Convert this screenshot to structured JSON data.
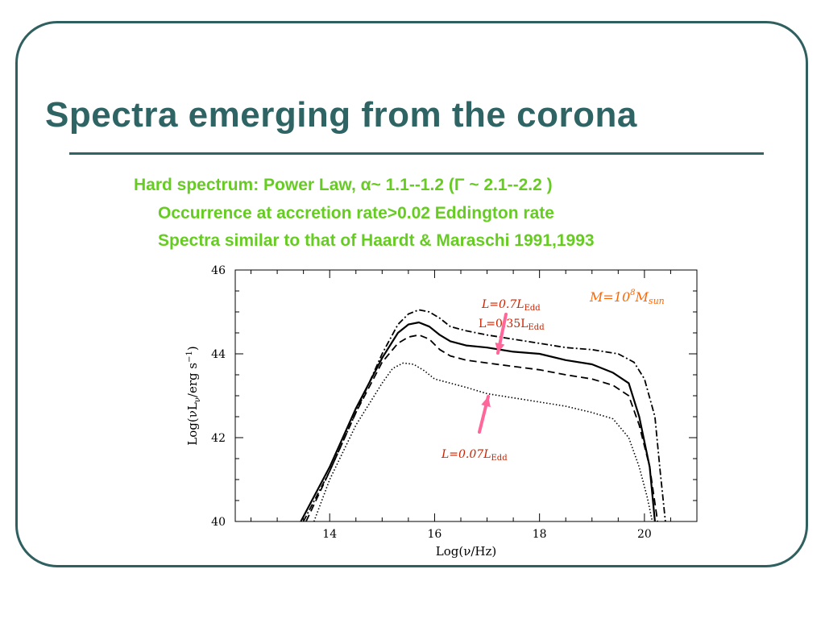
{
  "slide": {
    "title": "Spectra emerging from the corona",
    "bullets": [
      "Hard spectrum: Power Law, α~ 1.1--1.2 (Γ ~ 2.1--2.2 )",
      "Occurrence at accretion rate>0.02 Eddington rate",
      "Spectra similar to that of Haardt & Maraschi 1991,1993"
    ]
  },
  "colors": {
    "frame": "#2f5f5f",
    "title": "#2f6464",
    "bullets": "#66cc22",
    "annotations": "#cc2200",
    "mass_label": "#ff6600",
    "arrows": "#ff6699"
  },
  "chart_data": {
    "type": "line",
    "xlabel": "Log(ν/Hz)",
    "ylabel": "Log(νL",
    "ylabel_sub": "ν",
    "ylabel_tail": "/erg s",
    "ylabel_sup": "−1",
    "ylabel_close": ")",
    "xlim": [
      12.2,
      21.0
    ],
    "ylim": [
      40,
      46
    ],
    "xticks": [
      14,
      16,
      18,
      20
    ],
    "yticks": [
      40,
      42,
      44,
      46
    ],
    "xtick_labels": [
      "14",
      "16",
      "18",
      "20"
    ],
    "ytick_labels": [
      "40",
      "42",
      "44",
      "46"
    ],
    "grid": false,
    "mass_label": {
      "main": "M=10",
      "exp": "8",
      "unit": "M",
      "unit_sub": "sun"
    },
    "annotations": [
      {
        "main": "L=0.7L",
        "sub": "Edd",
        "italic": true
      },
      {
        "main": "L=0.35L",
        "sub": "Edd",
        "italic": false
      },
      {
        "main": "L=0.07L",
        "sub": "Edd",
        "italic": true
      }
    ],
    "series": [
      {
        "style": "dashdot",
        "x": [
          13.5,
          14.0,
          14.5,
          15.0,
          15.3,
          15.5,
          15.7,
          15.9,
          16.1,
          16.3,
          16.6,
          17.0,
          17.5,
          18.0,
          18.5,
          19.0,
          19.5,
          19.8,
          20.0,
          20.2,
          20.3,
          20.4
        ],
        "y": [
          40.0,
          41.2,
          42.6,
          44.0,
          44.7,
          44.95,
          45.05,
          45.0,
          44.85,
          44.65,
          44.55,
          44.45,
          44.35,
          44.25,
          44.15,
          44.1,
          44.0,
          43.8,
          43.4,
          42.5,
          41.2,
          40.0
        ]
      },
      {
        "style": "solid",
        "x": [
          13.45,
          14.0,
          14.5,
          15.0,
          15.3,
          15.5,
          15.7,
          15.9,
          16.1,
          16.3,
          16.6,
          17.0,
          17.5,
          18.0,
          18.5,
          19.0,
          19.4,
          19.7,
          19.9,
          20.1,
          20.2
        ],
        "y": [
          40.0,
          41.3,
          42.7,
          43.9,
          44.5,
          44.7,
          44.75,
          44.65,
          44.45,
          44.3,
          44.2,
          44.15,
          44.05,
          44.0,
          43.85,
          43.75,
          43.55,
          43.3,
          42.5,
          41.3,
          40.0
        ]
      },
      {
        "style": "dashed",
        "x": [
          13.55,
          14.0,
          14.5,
          15.0,
          15.3,
          15.5,
          15.7,
          15.9,
          16.1,
          16.3,
          16.6,
          17.0,
          17.5,
          18.0,
          18.5,
          19.0,
          19.4,
          19.7,
          19.9,
          20.1,
          20.25
        ],
        "y": [
          40.0,
          41.2,
          42.6,
          43.8,
          44.25,
          44.4,
          44.45,
          44.35,
          44.1,
          43.95,
          43.85,
          43.78,
          43.7,
          43.62,
          43.5,
          43.4,
          43.25,
          43.0,
          42.3,
          41.3,
          40.0
        ]
      },
      {
        "style": "dotted",
        "x": [
          13.7,
          14.0,
          14.5,
          15.0,
          15.2,
          15.4,
          15.6,
          15.8,
          16.0,
          16.3,
          16.6,
          17.0,
          17.5,
          18.0,
          18.5,
          19.0,
          19.4,
          19.7,
          19.9,
          20.05,
          20.15
        ],
        "y": [
          40.0,
          41.0,
          42.3,
          43.3,
          43.65,
          43.78,
          43.75,
          43.6,
          43.4,
          43.3,
          43.2,
          43.05,
          42.95,
          42.85,
          42.75,
          42.6,
          42.45,
          42.0,
          41.3,
          40.6,
          40.0
        ]
      }
    ]
  }
}
